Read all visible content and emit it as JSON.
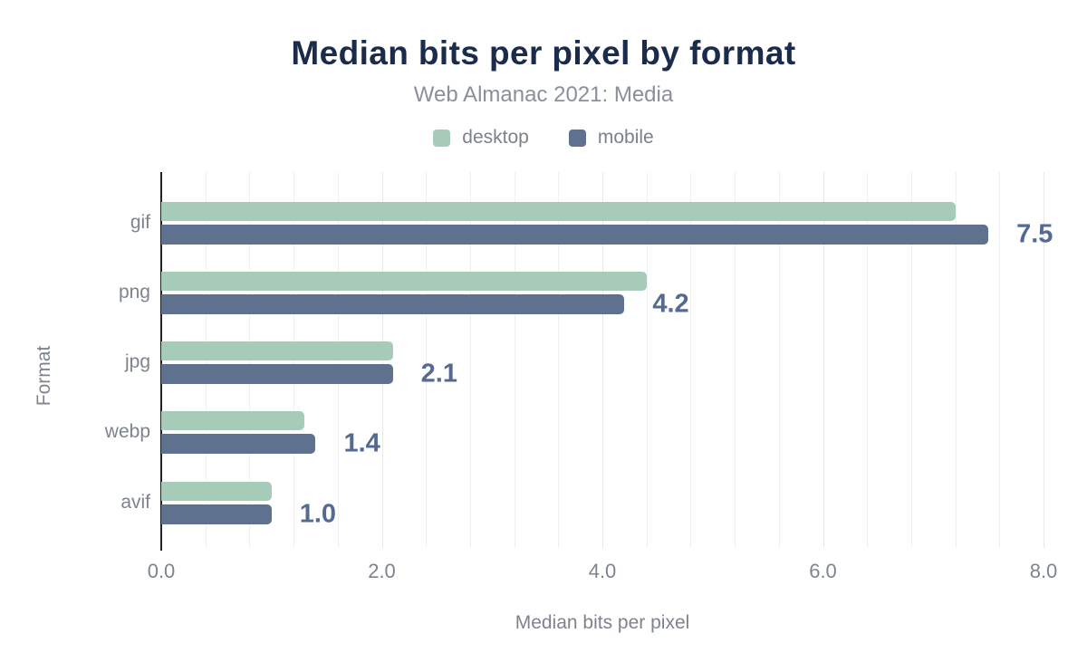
{
  "chart_data": {
    "type": "bar",
    "orientation": "horizontal",
    "title": "Median bits per pixel by format",
    "subtitle": "Web Almanac 2021: Media",
    "xlabel": "Median bits per pixel",
    "ylabel": "Format",
    "categories": [
      "gif",
      "png",
      "jpg",
      "webp",
      "avif"
    ],
    "series": [
      {
        "name": "desktop",
        "values": [
          7.2,
          4.4,
          2.1,
          1.3,
          1.0
        ]
      },
      {
        "name": "mobile",
        "values": [
          7.5,
          4.2,
          2.1,
          1.4,
          1.0
        ]
      }
    ],
    "bar_labels": [
      "7.5",
      "4.2",
      "2.1",
      "1.4",
      "1.0"
    ],
    "bar_labels_series": "mobile",
    "x_ticks": [
      "0.0",
      "2.0",
      "4.0",
      "6.0",
      "8.0"
    ],
    "x_tick_values": [
      0,
      2,
      4,
      6,
      8
    ],
    "xlim": [
      0,
      8
    ],
    "grid": "vertical, minor every 0.4",
    "legend_position": "top-center"
  },
  "colors": {
    "title": "#1a2b4c",
    "subtitle": "#8a9099",
    "desktop_series": "#a7cbb9",
    "mobile_series": "#5e7290",
    "value_label": "#546a91",
    "axis_text": "#7d848d",
    "legend_text": "#7b828b",
    "axis_line": "#212121",
    "gridline_minor": "#f0f0f0",
    "gridline_major": "#e7e7e7",
    "background": "#ffffff"
  }
}
